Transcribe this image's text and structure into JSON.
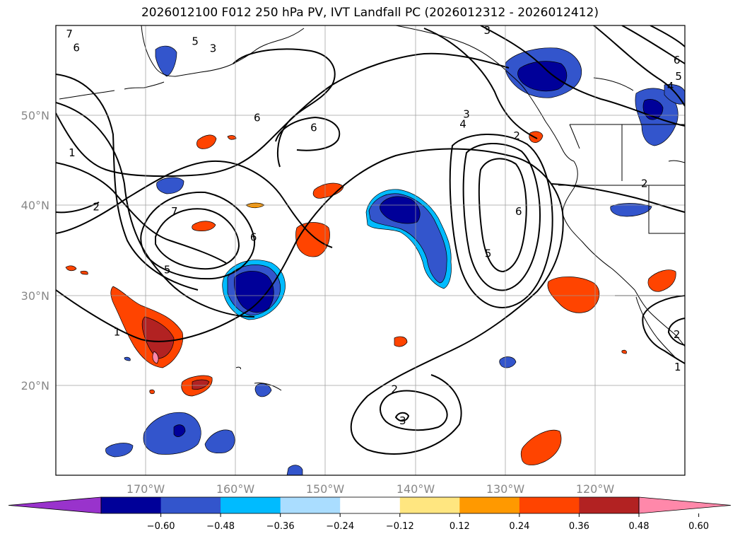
{
  "title": "2026012100 F012 250 hPa PV, IVT Landfall PC (2026012312 - 2026012412)",
  "map": {
    "lon_range": [
      -180,
      -110
    ],
    "lat_range": [
      10,
      60
    ],
    "lon_ticks": [
      -170,
      -160,
      -150,
      -140,
      -130,
      -120
    ],
    "lat_ticks": [
      20,
      30,
      40,
      50
    ],
    "lon_labels": [
      "170°W",
      "160°W",
      "150°W",
      "140°W",
      "130°W",
      "120°W"
    ],
    "lat_labels": [
      "20°N",
      "30°N",
      "40°N",
      "50°N"
    ]
  },
  "colorbar": {
    "levels": [
      "−0.60",
      "−0.48",
      "−0.36",
      "−0.24",
      "−0.12",
      "0.12",
      "0.24",
      "0.36",
      "0.48",
      "0.60"
    ],
    "colors": [
      "#9933cc",
      "#000099",
      "#3355cc",
      "#00bbff",
      "#aaddff",
      "#ffffff",
      "#ffe680",
      "#ff9900",
      "#ff4400",
      "#b22222",
      "#ff88aa"
    ]
  },
  "contour_labels": [
    {
      "text": "7",
      "lon": -178.5,
      "lat": 59
    },
    {
      "text": "6",
      "lon": -177.7,
      "lat": 57.5
    },
    {
      "text": "5",
      "lon": -164.5,
      "lat": 58.2
    },
    {
      "text": "3",
      "lon": -162.5,
      "lat": 57.4
    },
    {
      "text": "6",
      "lon": -157.6,
      "lat": 49.7
    },
    {
      "text": "6",
      "lon": -151.3,
      "lat": 48.6
    },
    {
      "text": "3",
      "lon": -134.3,
      "lat": 50.1
    },
    {
      "text": "4",
      "lon": -134.7,
      "lat": 49.0
    },
    {
      "text": "3",
      "lon": -132.0,
      "lat": 59.4
    },
    {
      "text": "1",
      "lon": -178.2,
      "lat": 45.8
    },
    {
      "text": "2",
      "lon": -175.5,
      "lat": 39.8
    },
    {
      "text": "7",
      "lon": -166.8,
      "lat": 39.3
    },
    {
      "text": "6",
      "lon": -158.0,
      "lat": 36.4
    },
    {
      "text": "5",
      "lon": -167.6,
      "lat": 32.8
    },
    {
      "text": "1",
      "lon": -173.2,
      "lat": 25.9
    },
    {
      "text": "6",
      "lon": -128.5,
      "lat": 39.3
    },
    {
      "text": "5",
      "lon": -131.9,
      "lat": 34.6
    },
    {
      "text": "2",
      "lon": -142.3,
      "lat": 19.5
    },
    {
      "text": "3",
      "lon": -141.4,
      "lat": 16.0
    },
    {
      "text": "2",
      "lon": -114.5,
      "lat": 42.4
    },
    {
      "text": "2",
      "lon": -110.9,
      "lat": 25.6
    },
    {
      "text": "1",
      "lon": -110.8,
      "lat": 22.0
    },
    {
      "text": "6",
      "lon": -110.9,
      "lat": 56.1
    },
    {
      "text": "5",
      "lon": -110.7,
      "lat": 54.3
    },
    {
      "text": "4",
      "lon": -111.6,
      "lat": 53.2
    },
    {
      "text": "2",
      "lon": -128.7,
      "lat": 47.7
    }
  ]
}
